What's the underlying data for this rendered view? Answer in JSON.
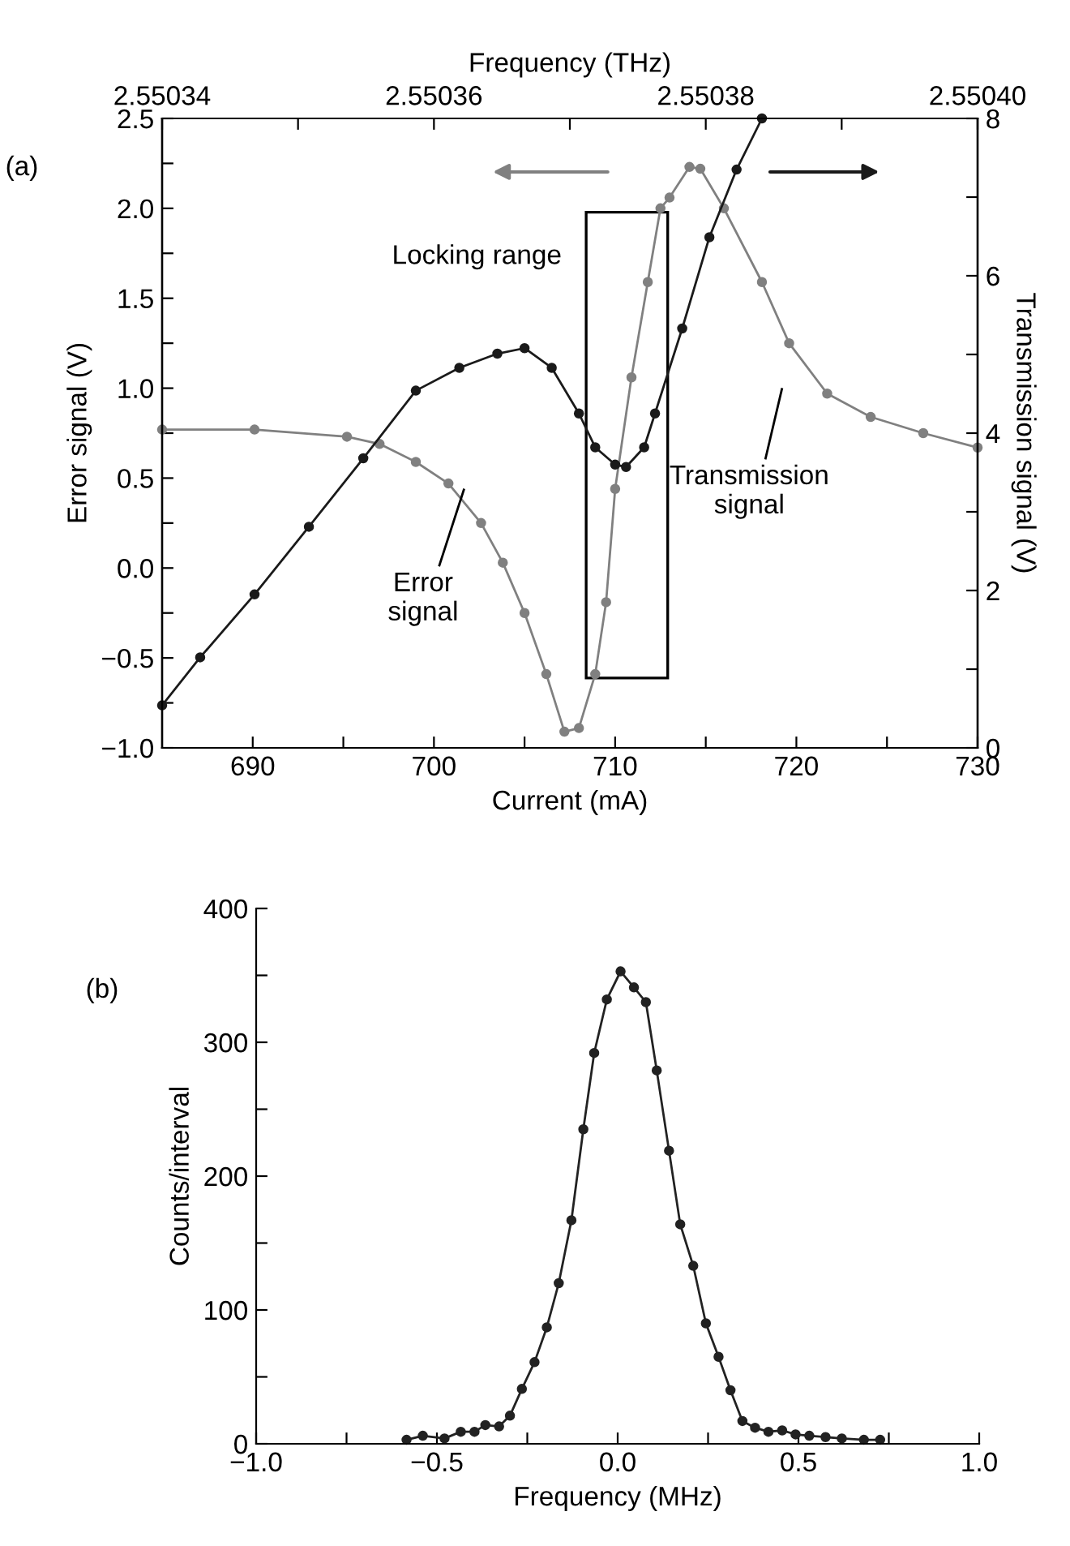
{
  "chart_data": [
    {
      "type": "line",
      "xlabel": "Current (mA)",
      "ylabel": "Error signal (V)",
      "y2label": "Transmission signal (V)",
      "x2label": "Frequency (THz)",
      "annotations": [
        "(a)",
        "Error\nsignal",
        "Transmission\nsignal",
        "Locking range"
      ],
      "xlim": [
        685,
        730
      ],
      "xticks": [
        690,
        {
          "value": 695,
          "label": null
        },
        700,
        {
          "value": 705,
          "label": null
        },
        710,
        {
          "value": 715,
          "label": null
        },
        720,
        {
          "value": 725,
          "label": null
        },
        730
      ],
      "ylim": [
        -1.0,
        2.5
      ],
      "yticks": [
        {
          "value": -1.0,
          "label": "−1.0"
        },
        {
          "value": -0.75,
          "label": null
        },
        {
          "value": -0.5,
          "label": "−0.5"
        },
        {
          "value": -0.25,
          "label": null
        },
        {
          "value": 0.0,
          "label": "0.0"
        },
        {
          "value": 0.25,
          "label": null
        },
        0.5,
        {
          "value": 0.75,
          "label": null
        },
        {
          "value": 1.0,
          "label": "1.0"
        },
        {
          "value": 1.25,
          "label": null
        },
        1.5,
        {
          "value": 1.75,
          "label": null
        },
        {
          "value": 2.0,
          "label": "2.0"
        },
        {
          "value": 2.25,
          "label": null
        },
        2.5
      ],
      "y2lim": [
        0,
        8
      ],
      "y2ticks": [
        0,
        {
          "value": 1,
          "label": null
        },
        2,
        {
          "value": 3,
          "label": null
        },
        4,
        {
          "value": 5,
          "label": null
        },
        6,
        {
          "value": 7,
          "label": null
        },
        8
      ],
      "x2lim": [
        2.55034,
        2.5504
      ],
      "x2ticks": [
        {
          "value": 2.55034,
          "label": "2.55034"
        },
        {
          "value": 2.55035,
          "label": null
        },
        {
          "value": 2.55036,
          "label": "2.55036"
        },
        {
          "value": 2.55037,
          "label": null
        },
        {
          "value": 2.55038,
          "label": "2.55038"
        },
        {
          "value": 2.55039,
          "label": null
        },
        {
          "value": 2.5504,
          "label": "2.55040"
        }
      ],
      "grid": false,
      "legend": false,
      "marker": "circle",
      "series": [
        {
          "color": "#808080",
          "x": [
            685.0,
            690.1,
            695.2,
            697.0,
            699.0,
            700.8,
            702.6,
            703.8,
            705.0,
            706.2,
            707.2,
            708.0,
            708.9,
            709.5,
            710.0,
            710.9,
            711.8,
            712.5,
            713.0,
            714.1,
            714.7,
            716.0,
            718.1,
            719.6,
            721.7,
            724.1,
            727.0,
            730.0
          ],
          "values": [
            0.77,
            0.77,
            0.73,
            0.69,
            0.59,
            0.47,
            0.25,
            0.03,
            -0.25,
            -0.59,
            -0.91,
            -0.89,
            -0.59,
            -0.19,
            0.44,
            1.06,
            1.59,
            2.0,
            2.06,
            2.23,
            2.22,
            2.0,
            1.59,
            1.25,
            0.97,
            0.84,
            0.75,
            0.67
          ]
        },
        {
          "color": "#1a1a1a",
          "axis": "y2",
          "x": [
            685.0,
            687.1,
            690.1,
            693.1,
            696.1,
            699.0,
            701.4,
            703.5,
            705.0,
            706.5,
            708.0,
            708.9,
            710.0,
            710.6,
            711.6,
            712.2,
            713.7,
            715.2,
            716.7,
            718.1
          ],
          "values": [
            0.54,
            1.15,
            1.95,
            2.81,
            3.68,
            4.54,
            4.83,
            5.01,
            5.08,
            4.83,
            4.25,
            3.82,
            3.6,
            3.57,
            3.82,
            4.25,
            5.33,
            6.49,
            7.35,
            8.0
          ]
        }
      ]
    },
    {
      "type": "line",
      "xlabel": "Frequency (MHz)",
      "ylabel": "Counts/interval",
      "annotations": [
        "(b)"
      ],
      "xlim": [
        -1.0,
        1.0
      ],
      "xticks": [
        {
          "value": -1.0,
          "label": "−1.0"
        },
        {
          "value": -0.75,
          "label": null
        },
        {
          "value": -0.5,
          "label": "−0.5"
        },
        {
          "value": -0.25,
          "label": null
        },
        {
          "value": 0.0,
          "label": "0.0"
        },
        {
          "value": 0.25,
          "label": null
        },
        0.5,
        {
          "value": 0.75,
          "label": null
        },
        {
          "value": 1.0,
          "label": "1.0"
        }
      ],
      "ylim": [
        0,
        400
      ],
      "yticks": [
        0,
        {
          "value": 50,
          "label": null
        },
        100,
        {
          "value": 150,
          "label": null
        },
        200,
        {
          "value": 250,
          "label": null
        },
        300,
        {
          "value": 350,
          "label": null
        },
        400
      ],
      "grid": false,
      "legend": false,
      "marker": "circle",
      "series": [
        {
          "color": "#222222",
          "x": [
            -0.584,
            -0.539,
            -0.479,
            -0.434,
            -0.396,
            -0.366,
            -0.328,
            -0.298,
            -0.265,
            -0.23,
            -0.196,
            -0.163,
            -0.128,
            -0.095,
            -0.065,
            -0.03,
            0.008,
            0.045,
            0.078,
            0.108,
            0.142,
            0.173,
            0.209,
            0.244,
            0.279,
            0.312,
            0.345,
            0.38,
            0.417,
            0.455,
            0.492,
            0.53,
            0.575,
            0.62,
            0.681,
            0.726
          ],
          "values": [
            3,
            6,
            4,
            9,
            9,
            14,
            13,
            21,
            41,
            61,
            87,
            120,
            167,
            235,
            292,
            332,
            353,
            341,
            330,
            279,
            219,
            164,
            133,
            90,
            65,
            40,
            17,
            12,
            9,
            10,
            7,
            6,
            5,
            4,
            3,
            3
          ]
        }
      ]
    }
  ]
}
